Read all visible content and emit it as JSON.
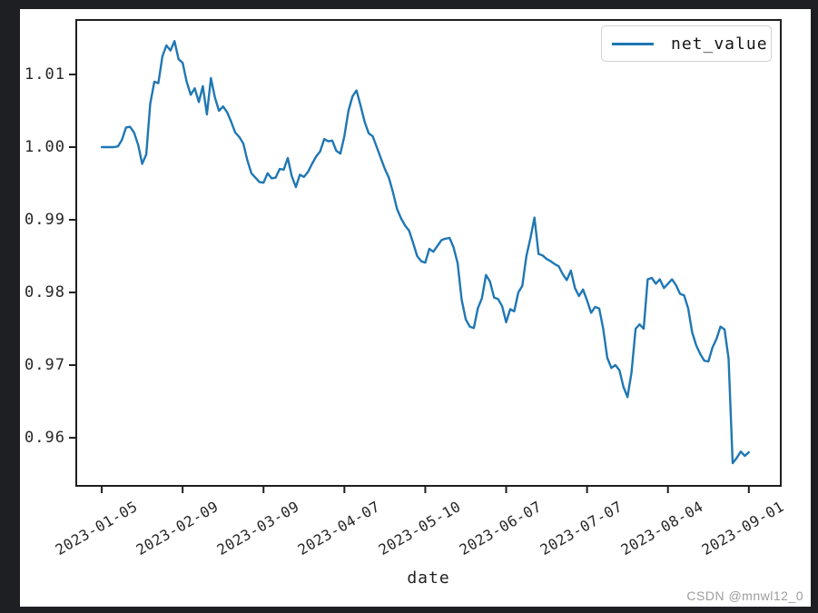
{
  "watermark": "CSDN @mnwl12_0",
  "chart_data": {
    "type": "line",
    "title": "",
    "xlabel": "date",
    "ylabel": "",
    "legend_label": "net_value",
    "legend_position": "upper right",
    "grid": false,
    "line_color": "#1f77b4",
    "x_tick_labels": [
      "2023-01-05",
      "2023-02-09",
      "2023-03-09",
      "2023-04-07",
      "2023-05-10",
      "2023-06-07",
      "2023-07-07",
      "2023-08-04",
      "2023-09-01"
    ],
    "x_tick_indices": [
      0,
      20,
      40,
      60,
      80,
      100,
      120,
      140,
      160
    ],
    "y_ticks": [
      1.01,
      1.0,
      0.99,
      0.98,
      0.97,
      0.96
    ],
    "xlim": [
      -6.3,
      167.9
    ],
    "ylim": [
      0.95338,
      1.0175
    ],
    "series": [
      {
        "name": "net_value",
        "x_unit": "trading days, 2023-01-05 to 2023-09-01 (index 0..160)",
        "values": [
          1.0,
          1.0,
          1.0,
          1.0,
          1.0001,
          1.001,
          1.0027,
          1.0028,
          1.002,
          1.0003,
          0.9977,
          0.999,
          1.006,
          1.009,
          1.0088,
          1.0125,
          1.014,
          1.0133,
          1.0146,
          1.0121,
          1.0116,
          1.009,
          1.0072,
          1.0081,
          1.0062,
          1.0084,
          1.0045,
          1.0095,
          1.0068,
          1.005,
          1.0056,
          1.0048,
          1.0035,
          1.002,
          1.0014,
          1.0005,
          0.9982,
          0.9964,
          0.9958,
          0.9952,
          0.9951,
          0.9964,
          0.9957,
          0.9958,
          0.997,
          0.9969,
          0.9985,
          0.996,
          0.9945,
          0.9962,
          0.9959,
          0.9966,
          0.9977,
          0.9987,
          0.9994,
          1.0011,
          1.0008,
          1.0009,
          0.9995,
          0.9991,
          1.0015,
          1.005,
          1.007,
          1.0078,
          1.0057,
          1.0035,
          1.0019,
          1.0015,
          1.0,
          0.9985,
          0.997,
          0.9958,
          0.9938,
          0.9915,
          0.9902,
          0.9892,
          0.9885,
          0.9868,
          0.985,
          0.9843,
          0.9841,
          0.986,
          0.9856,
          0.9864,
          0.9872,
          0.9874,
          0.9875,
          0.9862,
          0.984,
          0.979,
          0.9763,
          0.9753,
          0.9751,
          0.9778,
          0.9792,
          0.9824,
          0.9815,
          0.9793,
          0.9791,
          0.9781,
          0.9759,
          0.9777,
          0.9774,
          0.98,
          0.9809,
          0.985,
          0.9875,
          0.9903,
          0.9853,
          0.9851,
          0.9846,
          0.9843,
          0.9839,
          0.9836,
          0.9825,
          0.9817,
          0.983,
          0.9806,
          0.9795,
          0.9804,
          0.9789,
          0.9772,
          0.978,
          0.9778,
          0.975,
          0.971,
          0.9696,
          0.97,
          0.9693,
          0.967,
          0.9656,
          0.969,
          0.975,
          0.9756,
          0.975,
          0.9818,
          0.982,
          0.9812,
          0.9818,
          0.9806,
          0.9812,
          0.9818,
          0.981,
          0.9798,
          0.9796,
          0.9778,
          0.9745,
          0.9727,
          0.9715,
          0.9706,
          0.9705,
          0.9724,
          0.9736,
          0.9753,
          0.9749,
          0.9709,
          0.9565,
          0.9572,
          0.9581,
          0.9575,
          0.958
        ]
      }
    ]
  }
}
